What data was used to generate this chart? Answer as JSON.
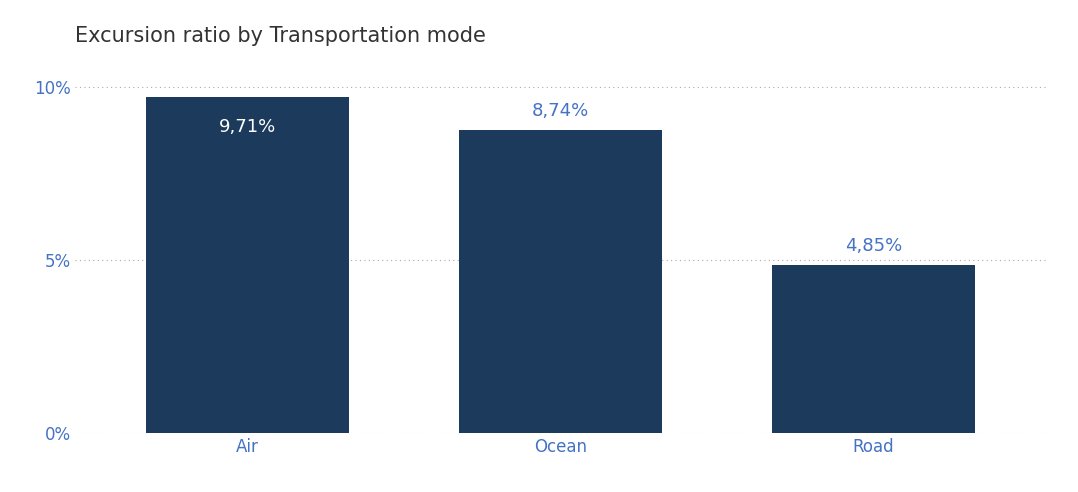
{
  "title": "Excursion ratio by Transportation mode",
  "categories": [
    "Air",
    "Ocean",
    "Road"
  ],
  "values": [
    0.0971,
    0.0874,
    0.0485
  ],
  "labels": [
    "9,71%",
    "8,74%",
    "4,85%"
  ],
  "label_inside": [
    true,
    false,
    false
  ],
  "bar_color": "#1b3a5c",
  "title_color": "#333333",
  "tick_color": "#4472c4",
  "label_inside_color": "#ffffff",
  "label_outside_color": "#4472c4",
  "background_color": "#ffffff",
  "ylim": [
    0,
    0.108
  ],
  "yticks": [
    0,
    0.05,
    0.1
  ],
  "ytick_labels": [
    "0%",
    "5%",
    "10%"
  ],
  "title_fontsize": 15,
  "tick_fontsize": 12,
  "label_fontsize": 13,
  "bar_width": 0.65
}
